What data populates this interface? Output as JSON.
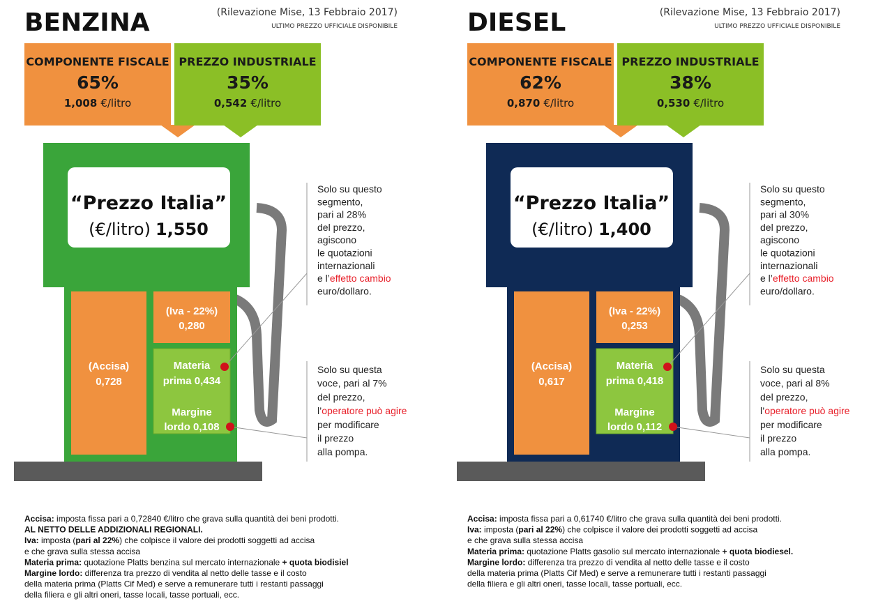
{
  "panels": [
    {
      "title": "BENZINA",
      "source": "(Rilevazione Mise, 13 Febbraio 2017)",
      "subtitle": "ULTIMO PREZZO UFFICIALE DISPONIBILE",
      "fiscal": {
        "label": "COMPONENTE FISCALE",
        "percent": "65%",
        "price": "1,008",
        "unit": "€/litro"
      },
      "industrial": {
        "label": "PREZZO INDUSTRIALE",
        "percent": "35%",
        "price": "0,542",
        "unit": "€/litro"
      },
      "display": {
        "name": "“Prezzo Italia”",
        "unit": "(€/litro)",
        "price": "1,550"
      },
      "accisa": [
        "(Accisa)",
        "0,728"
      ],
      "iva": [
        "(Iva - 22%)",
        "0,280"
      ],
      "materia": [
        "Materia",
        "prima 0,434"
      ],
      "margine": [
        "Margine",
        "lordo 0,108"
      ],
      "note1": [
        [
          {
            "text": "Solo su questo"
          }
        ],
        [
          {
            "text": "segmento,"
          }
        ],
        [
          {
            "text": "pari al 28%"
          }
        ],
        [
          {
            "text": "del prezzo,"
          }
        ],
        [
          {
            "text": "agiscono"
          }
        ],
        [
          {
            "text": "le quotazioni"
          }
        ],
        [
          {
            "text": "internazionali"
          }
        ],
        [
          {
            "text": "e l’"
          },
          {
            "text": "effetto cambio",
            "color": "#e8202a"
          }
        ],
        [
          {
            "text": "euro/dollaro."
          }
        ]
      ],
      "note2": [
        [
          {
            "text": "Solo su questa"
          }
        ],
        [
          {
            "text": "voce, pari al 7%"
          }
        ],
        [
          {
            "text": "del prezzo,"
          }
        ],
        [
          {
            "text": "l’"
          },
          {
            "text": "operatore può agire",
            "color": "#e8202a"
          }
        ],
        [
          {
            "text": "per modificare"
          }
        ],
        [
          {
            "text": "il prezzo"
          }
        ],
        [
          {
            "text": "alla pompa."
          }
        ]
      ],
      "footnotes": [
        [
          {
            "text": "Accisa:",
            "bold": true
          },
          {
            "text": " imposta fissa pari a 0,72840 €/litro che grava sulla quantità dei beni prodotti."
          }
        ],
        [
          {
            "text": "AL NETTO DELLE ADDIZIONALI REGIONALI.",
            "bold": true
          }
        ],
        [
          {
            "text": "Iva:",
            "bold": true
          },
          {
            "text": " imposta ("
          },
          {
            "text": "pari al 22%",
            "bold": true
          },
          {
            "text": ") che colpisce il valore dei prodotti soggetti ad accisa"
          }
        ],
        [
          {
            "text": "e che grava sulla stessa accisa"
          }
        ],
        [
          {
            "text": "Materia prima:",
            "bold": true
          },
          {
            "text": " quotazione Platts benzina sul mercato internazionale "
          },
          {
            "text": "+ quota biodisiel",
            "bold": true
          }
        ],
        [
          {
            "text": "Margine lordo:",
            "bold": true
          },
          {
            "text": " differenza tra prezzo di vendita al netto delle tasse e il costo"
          }
        ],
        [
          {
            "text": "della materia prima (Platts Cif Med) e serve a remunerare tutti i restanti passaggi"
          }
        ],
        [
          {
            "text": "della filiera e gli altri oneri, tasse locali, tasse portuali, ecc."
          }
        ]
      ],
      "pump_color": "#3aa53a"
    },
    {
      "title": "DIESEL",
      "source": "(Rilevazione Mise, 13 Febbraio 2017)",
      "subtitle": "ULTIMO PREZZO UFFICIALE DISPONIBILE",
      "fiscal": {
        "label": "COMPONENTE FISCALE",
        "percent": "62%",
        "price": "0,870",
        "unit": "€/litro"
      },
      "industrial": {
        "label": "PREZZO INDUSTRIALE",
        "percent": "38%",
        "price": "0,530",
        "unit": "€/litro"
      },
      "display": {
        "name": "“Prezzo Italia”",
        "unit": "(€/litro)",
        "price": "1,400"
      },
      "accisa": [
        "(Accisa)",
        "0,617"
      ],
      "iva": [
        "(Iva - 22%)",
        "0,253"
      ],
      "materia": [
        "Materia",
        "prima 0,418"
      ],
      "margine": [
        "Margine",
        "lordo 0,112"
      ],
      "note1": [
        [
          {
            "text": "Solo su questo"
          }
        ],
        [
          {
            "text": "segmento,"
          }
        ],
        [
          {
            "text": "pari al 30%"
          }
        ],
        [
          {
            "text": "del prezzo,"
          }
        ],
        [
          {
            "text": "agiscono"
          }
        ],
        [
          {
            "text": "le quotazioni"
          }
        ],
        [
          {
            "text": "internazionali"
          }
        ],
        [
          {
            "text": "e l’"
          },
          {
            "text": "effetto cambio",
            "color": "#e8202a"
          }
        ],
        [
          {
            "text": "euro/dollaro."
          }
        ]
      ],
      "note2": [
        [
          {
            "text": "Solo su questa"
          }
        ],
        [
          {
            "text": "voce, pari al 8%"
          }
        ],
        [
          {
            "text": "del prezzo,"
          }
        ],
        [
          {
            "text": "l’"
          },
          {
            "text": "operatore può agire",
            "color": "#e8202a"
          }
        ],
        [
          {
            "text": "per modificare"
          }
        ],
        [
          {
            "text": "il prezzo"
          }
        ],
        [
          {
            "text": "alla pompa."
          }
        ]
      ],
      "footnotes": [
        [
          {
            "text": "Accisa:",
            "bold": true
          },
          {
            "text": " imposta fissa pari a 0,61740 €/litro che grava sulla quantità dei beni prodotti."
          }
        ],
        [
          {
            "text": "Iva:",
            "bold": true
          },
          {
            "text": " imposta ("
          },
          {
            "text": "pari al 22%",
            "bold": true
          },
          {
            "text": ") che colpisce il valore dei prodotti soggetti ad accisa"
          }
        ],
        [
          {
            "text": "e che grava sulla stessa accisa"
          }
        ],
        [
          {
            "text": "Materia prima:",
            "bold": true
          },
          {
            "text": " quotazione Platts gasolio sul mercato internazionale "
          },
          {
            "text": "+ quota biodiesel.",
            "bold": true
          }
        ],
        [
          {
            "text": "Margine lordo:",
            "bold": true
          },
          {
            "text": " differenza tra prezzo di vendita al netto delle tasse e il costo"
          }
        ],
        [
          {
            "text": "della materia prima (Platts Cif Med) e serve a remunerare tutti i restanti passaggi"
          }
        ],
        [
          {
            "text": "della filiera e gli altri oneri, tasse locali, tasse portuali, ecc."
          }
        ]
      ],
      "pump_color": "#0f2a55"
    }
  ]
}
